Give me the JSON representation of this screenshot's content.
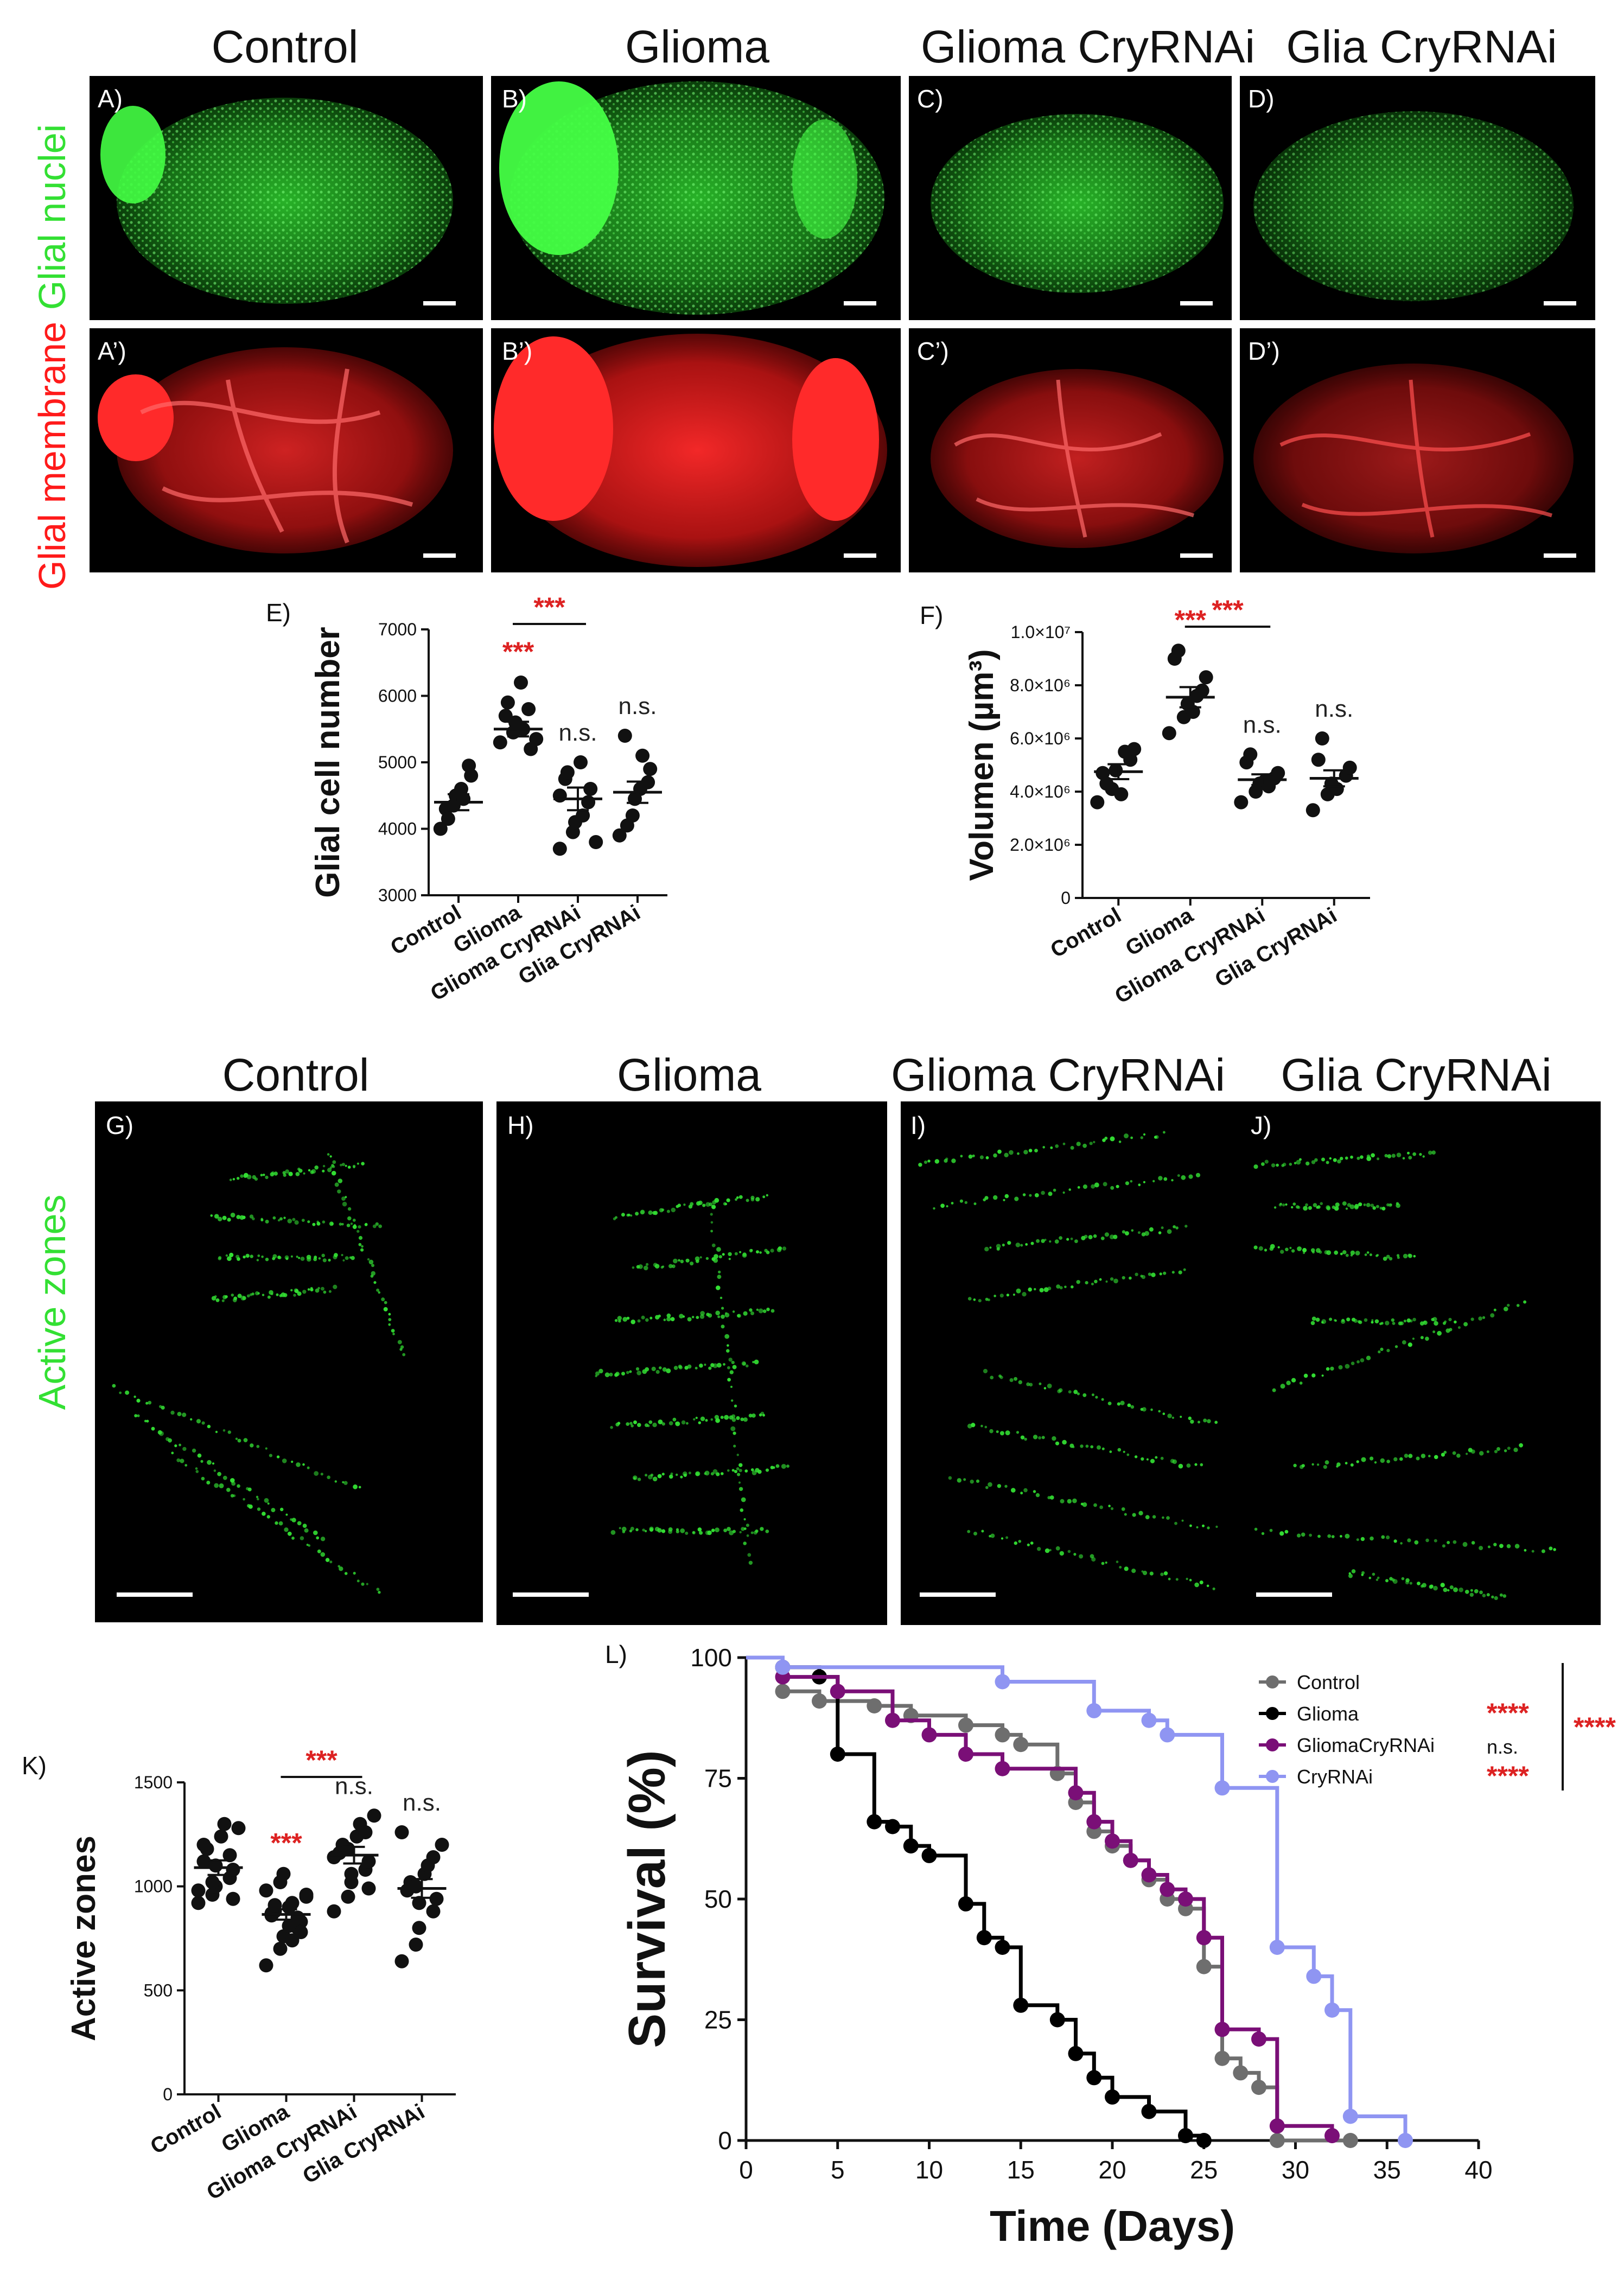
{
  "column_titles": {
    "top": [
      "Control",
      "Glioma",
      "Glioma CryRNAi",
      "Glia CryRNAi"
    ],
    "bottom": [
      "Control",
      "Glioma",
      "Glioma CryRNAi",
      "Glia CryRNAi"
    ]
  },
  "row_labels": {
    "glial_nuclei": "Glial nuclei",
    "glial_membrane": "Glial membrane",
    "active_zones": "Active zones"
  },
  "panel_labels": {
    "A": "A)",
    "B": "B)",
    "C": "C)",
    "D": "D)",
    "A2": "A’)",
    "B2": "B’)",
    "C2": "C’)",
    "D2": "D’)",
    "G": "G)",
    "H": "H)",
    "I": "I)",
    "J": "J)"
  },
  "colors": {
    "green": "#33e033",
    "red": "#ff1a1a",
    "sig_red": "#dd2222",
    "control": "#6e6e6e",
    "glioma": "#000000",
    "glioma_cryrnai": "#7a0f77",
    "cryrnai": "#8f95f2"
  },
  "chart_data": [
    {
      "id": "E",
      "panel_label": "E)",
      "type": "scatter",
      "ylabel": "Glial cell number",
      "ylim": [
        3000,
        7000
      ],
      "yticks": [
        "3000",
        "4000",
        "5000",
        "6000",
        "7000"
      ],
      "categories": [
        "Control",
        "Glioma",
        "Glioma CryRNAi",
        "Glia CryRNAi"
      ],
      "points": [
        [
          4000,
          4350,
          4500,
          4950,
          4800,
          4300,
          4150,
          4600,
          4450
        ],
        [
          5300,
          5450,
          5600,
          5800,
          5200,
          5700,
          5900,
          6200,
          5500,
          5350
        ],
        [
          3700,
          3950,
          4100,
          4400,
          4600,
          4750,
          4850,
          5000,
          4200,
          3800,
          4500
        ],
        [
          3900,
          4200,
          4450,
          4700,
          4900,
          5400,
          4050,
          4600,
          5100
        ]
      ],
      "means": [
        4400,
        5500,
        4450,
        4550
      ],
      "sem": [
        120,
        110,
        170,
        160
      ],
      "annotations": [
        {
          "text": "***",
          "category": 1,
          "color": "red"
        },
        {
          "text": "n.s.",
          "category": 2
        },
        {
          "text": "n.s.",
          "category": 3
        }
      ],
      "bracket": {
        "from": 1,
        "to": 2,
        "text": "***"
      }
    },
    {
      "id": "F",
      "panel_label": "F)",
      "type": "scatter",
      "ylabel": "Volumen (µm³)",
      "ylim": [
        0,
        10000000
      ],
      "yticks": [
        "0",
        "2.0×10⁶",
        "4.0×10⁶",
        "6.0×10⁶",
        "8.0×10⁶",
        "1.0×10⁷"
      ],
      "categories": [
        "Control",
        "Glioma",
        "Glioma CryRNAi",
        "Glia CryRNAi"
      ],
      "points": [
        [
          3600000,
          4100000,
          4800000,
          5200000,
          5600000,
          4700000,
          4300000,
          3900000,
          5500000
        ],
        [
          6200000,
          6800000,
          7300000,
          7800000,
          8300000,
          9000000,
          9300000,
          7000000,
          7600000
        ],
        [
          3600000,
          4000000,
          4300000,
          4500000,
          4700000,
          5100000,
          5400000,
          4400000,
          4200000
        ],
        [
          3300000,
          3900000,
          4300000,
          4600000,
          4900000,
          5200000,
          6000000,
          4100000
        ]
      ],
      "means": [
        4750000,
        7550000,
        4450000,
        4500000
      ],
      "sem": [
        280000,
        380000,
        200000,
        300000
      ],
      "annotations": [
        {
          "text": "***",
          "category": 1,
          "color": "red"
        },
        {
          "text": "n.s.",
          "category": 2
        },
        {
          "text": "n.s.",
          "category": 3
        }
      ],
      "bracket": {
        "from": 1,
        "to": 2,
        "text": "***"
      }
    },
    {
      "id": "K",
      "panel_label": "K)",
      "type": "scatter",
      "ylabel": "Active zones",
      "ylim": [
        0,
        1500
      ],
      "yticks": [
        "0",
        "500",
        "1000",
        "1500"
      ],
      "categories": [
        "Control",
        "Glioma",
        "Glioma CryRNAi",
        "Glia CryRNAi"
      ],
      "points": [
        [
          920,
          960,
          1000,
          1040,
          1080,
          1120,
          1180,
          1240,
          1300,
          1280,
          980,
          1020,
          1100,
          1150,
          940,
          1200
        ],
        [
          620,
          700,
          760,
          800,
          830,
          860,
          880,
          900,
          920,
          950,
          980,
          1020,
          1060,
          850,
          780,
          870,
          910,
          810,
          740,
          960
        ],
        [
          880,
          950,
          1020,
          1080,
          1120,
          1160,
          1200,
          1240,
          1300,
          1340,
          1140,
          1180,
          1060,
          1260,
          990
        ],
        [
          640,
          720,
          800,
          880,
          940,
          980,
          1020,
          1060,
          1100,
          1200,
          1260,
          1000,
          920,
          1140
        ]
      ],
      "means": [
        1090,
        865,
        1150,
        990
      ],
      "sem": [
        35,
        25,
        40,
        45
      ],
      "annotations": [
        {
          "text": "***",
          "category": 1,
          "color": "red"
        },
        {
          "text": "n.s.",
          "category": 2
        },
        {
          "text": "n.s.",
          "category": 3
        }
      ],
      "bracket": {
        "from": 1,
        "to": 2,
        "text": "***"
      }
    },
    {
      "id": "L",
      "panel_label": "L)",
      "type": "line",
      "xlabel": "Time (Days)",
      "ylabel": "Survival (%)",
      "xlim": [
        0,
        40
      ],
      "ylim": [
        0,
        100
      ],
      "xticks": [
        "0",
        "5",
        "10",
        "15",
        "20",
        "25",
        "30",
        "35",
        "40"
      ],
      "yticks": [
        "0",
        "25",
        "50",
        "75",
        "100"
      ],
      "series": [
        {
          "name": "Control",
          "color_key": "control",
          "x": [
            0,
            2,
            4,
            7,
            9,
            12,
            14,
            15,
            17,
            18,
            19,
            20,
            21,
            22,
            23,
            24,
            25,
            26,
            27,
            28,
            29,
            33
          ],
          "y": [
            100,
            93,
            91,
            90,
            88,
            86,
            84,
            82,
            76,
            70,
            64,
            61,
            58,
            54,
            50,
            48,
            36,
            17,
            14,
            11,
            0,
            0
          ]
        },
        {
          "name": "Glioma",
          "color_key": "glioma",
          "x": [
            0,
            2,
            4,
            5,
            7,
            8,
            9,
            10,
            12,
            13,
            14,
            15,
            17,
            18,
            19,
            20,
            22,
            24,
            25
          ],
          "y": [
            100,
            98,
            96,
            80,
            66,
            65,
            61,
            59,
            49,
            42,
            40,
            28,
            25,
            18,
            13,
            9,
            6,
            1,
            0
          ]
        },
        {
          "name": "GliomaCryRNAi",
          "color_key": "glioma_cryrnai",
          "x": [
            0,
            2,
            5,
            8,
            10,
            12,
            14,
            18,
            19,
            20,
            21,
            22,
            23,
            24,
            25,
            26,
            28,
            29,
            32
          ],
          "y": [
            100,
            96,
            93,
            87,
            84,
            80,
            77,
            72,
            66,
            62,
            58,
            55,
            52,
            50,
            42,
            23,
            21,
            3,
            1
          ]
        },
        {
          "name": "CryRNAi",
          "color_key": "cryrnai",
          "x": [
            0,
            2,
            14,
            19,
            22,
            23,
            26,
            29,
            31,
            32,
            33,
            36
          ],
          "y": [
            100,
            98,
            95,
            89,
            87,
            84,
            73,
            40,
            34,
            27,
            5,
            0
          ]
        }
      ],
      "legend_sig": [
        "****",
        "****",
        "n.s.",
        "****"
      ],
      "legend_right_sig": "****"
    }
  ]
}
